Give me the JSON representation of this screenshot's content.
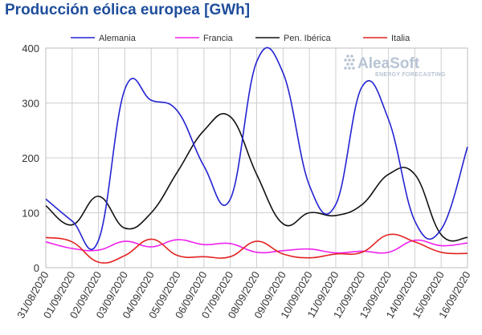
{
  "chart_data": {
    "type": "line",
    "title": "Producción eólica europea [GWh]",
    "xlabel": "",
    "ylabel": "",
    "ylim": [
      0,
      400
    ],
    "yticks": [
      0,
      100,
      200,
      300,
      400
    ],
    "grid": true,
    "legend_position": "top",
    "categories": [
      "31/08/2020",
      "01/09/2020",
      "02/09/2020",
      "03/09/2020",
      "04/09/2020",
      "05/09/2020",
      "06/09/2020",
      "07/09/2020",
      "08/09/2020",
      "09/09/2020",
      "10/09/2020",
      "11/09/2020",
      "12/09/2020",
      "13/09/2020",
      "14/09/2020",
      "15/09/2020",
      "16/09/2020"
    ],
    "series": [
      {
        "name": "Alemania",
        "color": "#2323d2",
        "values": [
          125,
          85,
          50,
          325,
          305,
          285,
          185,
          125,
          375,
          355,
          150,
          115,
          330,
          270,
          85,
          70,
          220
        ]
      },
      {
        "name": "Francia",
        "color": "#ee22ee",
        "values": [
          47,
          35,
          32,
          48,
          38,
          51,
          42,
          44,
          28,
          31,
          34,
          27,
          30,
          28,
          50,
          40,
          45
        ]
      },
      {
        "name": "Pen. Ibérica",
        "color": "#111111",
        "values": [
          113,
          78,
          130,
          72,
          100,
          175,
          250,
          275,
          170,
          80,
          100,
          95,
          115,
          170,
          170,
          60,
          55
        ]
      },
      {
        "name": "Italia",
        "color": "#e32222",
        "values": [
          55,
          47,
          10,
          22,
          52,
          22,
          20,
          20,
          48,
          25,
          18,
          25,
          28,
          60,
          47,
          28,
          26
        ]
      }
    ]
  },
  "logo": {
    "name": "AleaSoft",
    "tagline": "ENERGY FORECASTING"
  }
}
